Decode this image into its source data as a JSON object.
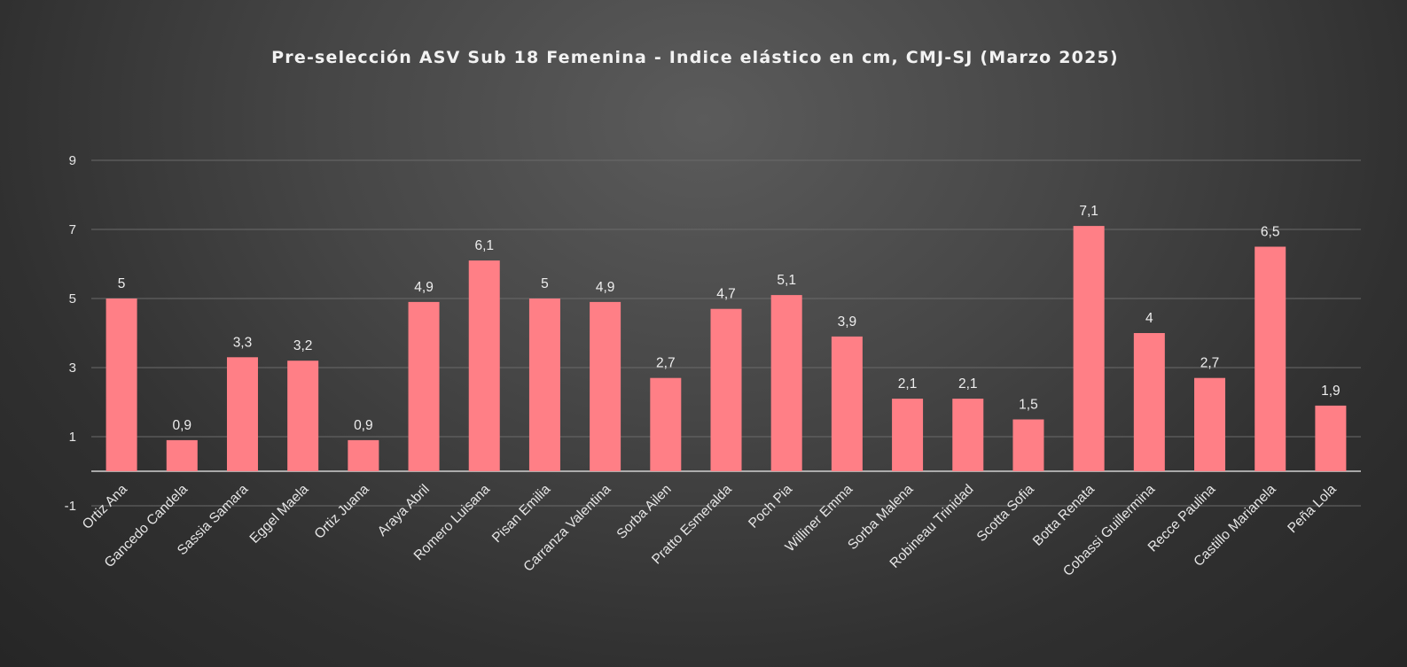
{
  "chart_data": {
    "type": "bar",
    "title": "Pre-selección ASV Sub 18 Femenina - Indice elástico en cm, CMJ-SJ (Marzo 2025)",
    "xlabel": "",
    "ylabel": "",
    "ylim": [
      -1,
      9
    ],
    "yticks": [
      -1,
      1,
      3,
      5,
      7,
      9
    ],
    "grid": true,
    "legend": "none",
    "bar_color": "#ff7f86",
    "categories": [
      "Ortiz Ana",
      "Gancedo Candela",
      "Sassia Samara",
      "Eggel Maela",
      "Ortiz Juana",
      "Araya Abril",
      "Romero Luisana",
      "Pisan Emilia",
      "Carranza Valentina",
      "Sorba Ailen",
      "Pratto Esmeralda",
      "Poch Pia",
      "Williner Emma",
      "Sorba Malena",
      "Robineau Trinidad",
      "Scotta Sofia",
      "Botta Renata",
      "Cobassi Guillermina",
      "Recce Paulina",
      "Castillo Marianela",
      "Peña Lola"
    ],
    "values": [
      5,
      0.9,
      3.3,
      3.2,
      0.9,
      4.9,
      6.1,
      5,
      4.9,
      2.7,
      4.7,
      5.1,
      3.9,
      2.1,
      2.1,
      1.5,
      7.1,
      4,
      2.7,
      6.5,
      1.9
    ],
    "data_labels": [
      "5",
      "0,9",
      "3,3",
      "3,2",
      "0,9",
      "4,9",
      "6,1",
      "5",
      "4,9",
      "2,7",
      "4,7",
      "5,1",
      "3,9",
      "2,1",
      "2,1",
      "1,5",
      "7,1",
      "4",
      "2,7",
      "6,5",
      "1,9"
    ]
  }
}
